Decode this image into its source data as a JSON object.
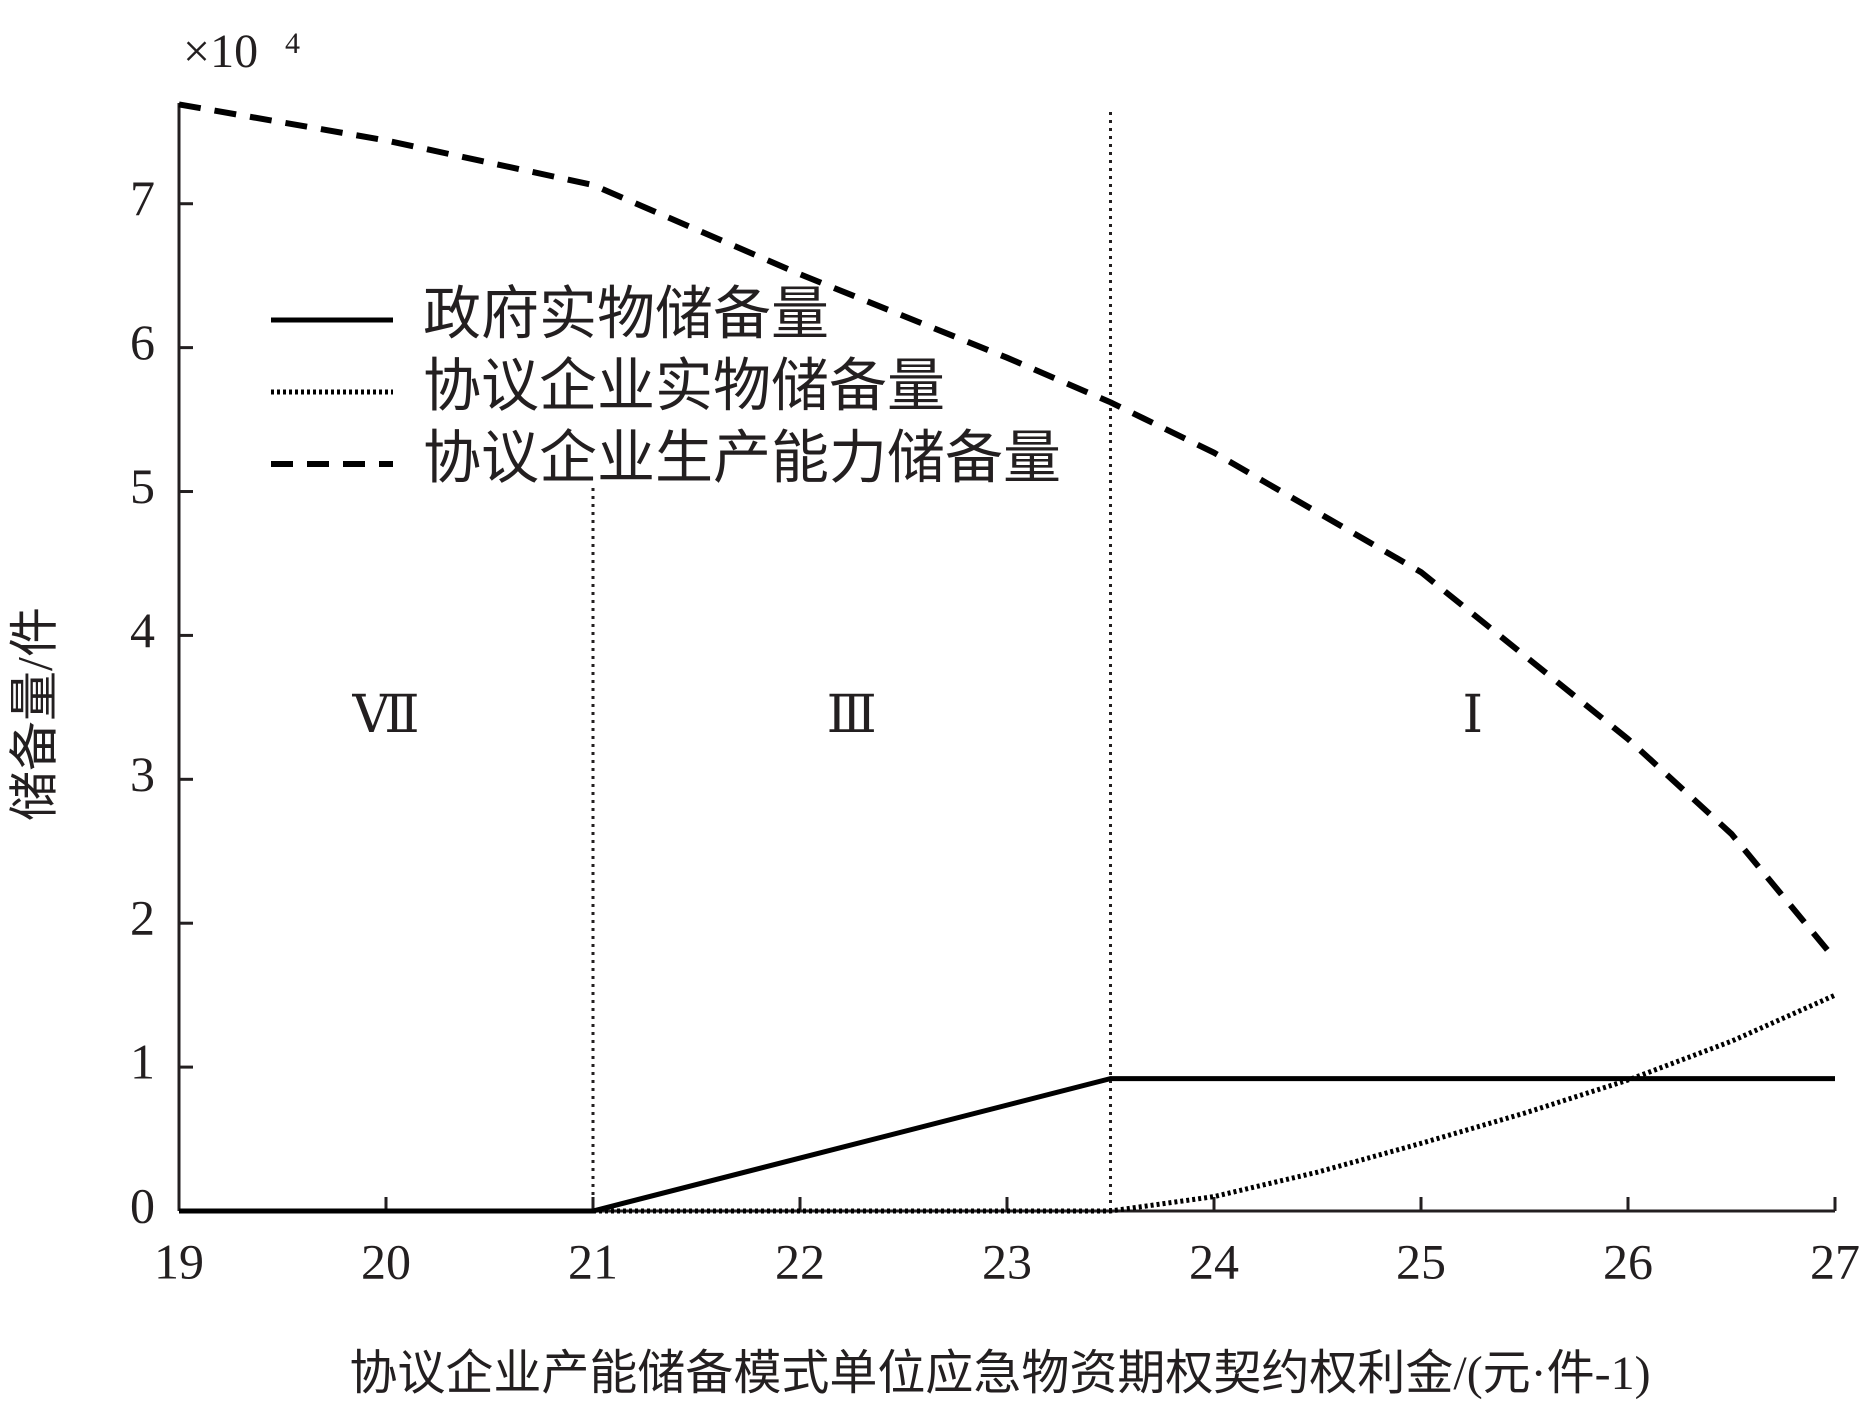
{
  "chart_data": {
    "type": "line",
    "multiplier": "×10",
    "multiplier_exponent": "4",
    "x_label": "协议企业产能储备模式单位应急物资期权契约权利金/(元·件-1)",
    "y_label": "储备量/件",
    "xlim": [
      19,
      27
    ],
    "xticks": [
      19,
      20,
      21,
      22,
      23,
      24,
      25,
      26,
      27
    ],
    "ylim": [
      0,
      7.7
    ],
    "yticks": [
      0,
      1,
      2,
      3,
      4,
      5,
      6,
      7
    ],
    "boundaries": [
      21,
      23.5
    ],
    "regions": [
      "Ⅶ",
      "Ⅲ",
      "Ⅰ"
    ],
    "legend": "upper left",
    "series": [
      {
        "name": "政府实物储备量",
        "color": "#000000",
        "dash": "solid",
        "x": [
          19,
          21,
          23.5,
          27
        ],
        "values": [
          0,
          0,
          0.92,
          0.92
        ]
      },
      {
        "name": "协议企业实物储备量",
        "color": "#000000",
        "dash": "dotted",
        "x": [
          19,
          23.5,
          24,
          24.5,
          25,
          25.5,
          26,
          26.5,
          27
        ],
        "values": [
          0,
          0,
          0.1,
          0.27,
          0.47,
          0.68,
          0.91,
          1.18,
          1.5
        ]
      },
      {
        "name": "协议企业生产能力储备量",
        "color": "#000000",
        "dash": "dashed",
        "x": [
          19,
          20,
          21,
          22,
          23,
          23.5,
          24,
          25,
          26,
          26.5,
          27
        ],
        "values": [
          7.69,
          7.44,
          7.13,
          6.51,
          5.93,
          5.62,
          5.27,
          4.44,
          3.28,
          2.62,
          1.75
        ]
      }
    ]
  }
}
